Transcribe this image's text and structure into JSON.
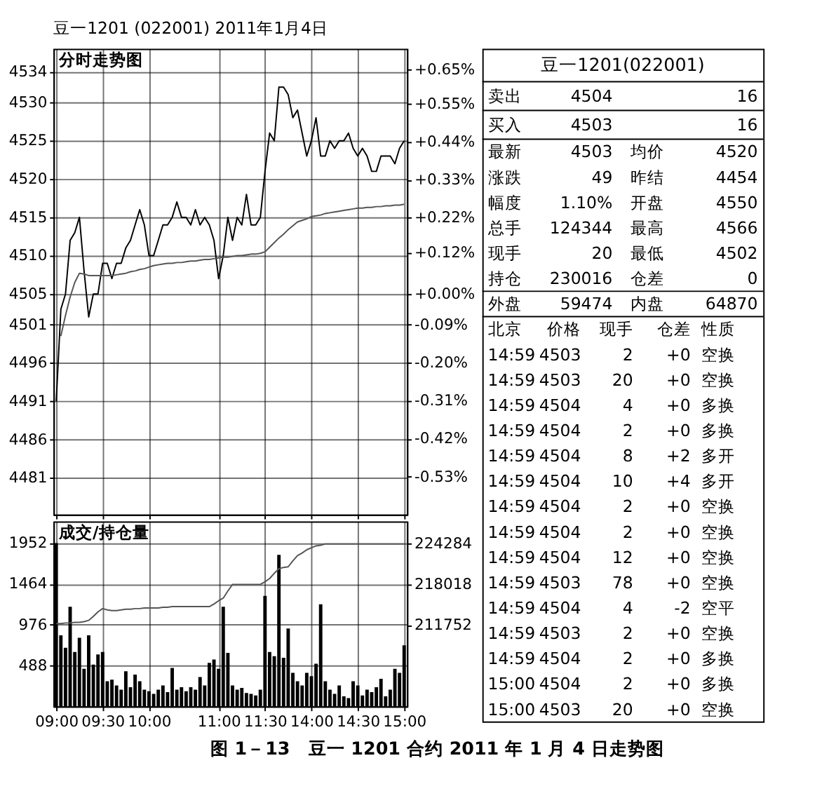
{
  "chart_data": [
    {
      "type": "line",
      "title": "分时走势图",
      "annotations": [
        "豆一1201 (022001) 2011年1月4日",
        "图 1－13　豆一 1201 合约 2011 年 1 月 4 日走势图"
      ],
      "categories": [
        null,
        null,
        null,
        null,
        null,
        null,
        null,
        null,
        null,
        null,
        null,
        null,
        null,
        null,
        null,
        null,
        null,
        null,
        null,
        null,
        null,
        null,
        null,
        null,
        null,
        null,
        null,
        null,
        null,
        null,
        null,
        null,
        null,
        null,
        null,
        null,
        null,
        null,
        null,
        null,
        null,
        null,
        null,
        null,
        null,
        null,
        null,
        null,
        null,
        null,
        null,
        null,
        null,
        null,
        null,
        null,
        null,
        null,
        null,
        null,
        null,
        null,
        null,
        null,
        null,
        null,
        null,
        null,
        null,
        null,
        null,
        null,
        null,
        null,
        null,
        null
      ],
      "ylim": [
        4476.2,
        4537.0
      ],
      "yticks": [
        4534,
        4530,
        4525,
        4520,
        4515,
        4510,
        4505,
        4501,
        4496,
        4491,
        4486,
        4481
      ],
      "y2lim": [
        -0.64,
        0.71
      ],
      "y2ticks": [
        {
          "value": 0.65,
          "label": "+0.65%"
        },
        {
          "value": 0.55,
          "label": "+0.55%"
        },
        {
          "value": 0.44,
          "label": "+0.44%"
        },
        {
          "value": 0.33,
          "label": "+0.33%"
        },
        {
          "value": 0.22,
          "label": "+0.22%"
        },
        {
          "value": 0.12,
          "label": "+0.12%"
        },
        {
          "value": 0,
          "label": "+0.00%"
        },
        {
          "value": -0.09,
          "label": "-0.09%"
        },
        {
          "value": -0.2,
          "label": "-0.20%"
        },
        {
          "value": -0.31,
          "label": "-0.31%"
        },
        {
          "value": -0.42,
          "label": "-0.42%"
        },
        {
          "value": -0.53,
          "label": "-0.53%"
        }
      ],
      "grid": true,
      "tick_labels": "y",
      "series": [
        {
          "type": "line",
          "color": "#000000",
          "values": [
            4491,
            4503,
            4505,
            4512,
            4513,
            4515,
            4508,
            4502,
            4505,
            4505,
            4509,
            4509,
            4507,
            4509,
            4509,
            4511,
            4512,
            4514,
            4516,
            4514,
            4510,
            4510,
            4512,
            4514,
            4514,
            4515,
            4517,
            4515,
            4515,
            4514,
            4516,
            4514,
            4515,
            4514,
            4512,
            4507,
            4510,
            4515,
            4512,
            4515,
            4514,
            4518,
            4514,
            4514,
            4515,
            4521,
            4526,
            4525,
            4532,
            4532,
            4531,
            4528,
            4529,
            4526,
            4523,
            4525,
            4528,
            4523,
            4523,
            4525,
            4524,
            4525,
            4525,
            4526,
            4524,
            4523,
            4524,
            4523,
            4521,
            4521,
            4523,
            4523,
            4523,
            4522,
            4524,
            4525
          ]
        },
        {
          "type": "line",
          "color": "#555555",
          "values": [
            null,
            4499.5,
            4502.2,
            4504.6,
            4506.5,
            4507.7,
            4507.6,
            4507.4,
            4507.4,
            4507.4,
            4507.4,
            4507.4,
            4507.4,
            4507.5,
            4507.6,
            4507.7,
            4507.9,
            4508.0,
            4508.2,
            4508.3,
            4508.5,
            4508.7,
            4508.8,
            4508.9,
            4509.0,
            4509.0,
            4509.1,
            4509.1,
            4509.2,
            4509.3,
            4509.3,
            4509.4,
            4509.5,
            4509.5,
            4509.6,
            4509.7,
            4509.8,
            4509.8,
            4509.9,
            4510.0,
            4510.0,
            4510.1,
            4510.2,
            4510.2,
            4510.3,
            4510.5,
            4511.1,
            4511.7,
            4512.3,
            4512.8,
            4513.4,
            4513.9,
            4514.4,
            4514.6,
            4514.8,
            4515.1,
            4515.2,
            4515.3,
            4515.5,
            4515.6,
            4515.7,
            4515.8,
            4515.9,
            4516.0,
            4516.1,
            4516.2,
            4516.2,
            4516.3,
            4516.3,
            4516.4,
            4516.4,
            4516.5,
            4516.5,
            4516.6,
            4516.6,
            4516.7
          ]
        }
      ]
    },
    {
      "type": "bar",
      "title": "成交/持仓量",
      "categories": [
        "09:00",
        null,
        null,
        null,
        null,
        null,
        null,
        null,
        null,
        null,
        "09:30",
        null,
        null,
        null,
        null,
        null,
        null,
        null,
        null,
        null,
        "10:00",
        null,
        null,
        null,
        null,
        null,
        null,
        null,
        null,
        null,
        null,
        null,
        null,
        null,
        null,
        "11:00",
        null,
        null,
        null,
        null,
        null,
        null,
        null,
        null,
        null,
        "11:30",
        null,
        null,
        null,
        null,
        null,
        null,
        null,
        null,
        null,
        "14:00",
        null,
        null,
        null,
        null,
        null,
        null,
        null,
        null,
        null,
        "14:30",
        null,
        null,
        null,
        null,
        null,
        null,
        null,
        null,
        null,
        "15:00"
      ],
      "ylim": [
        0,
        2210
      ],
      "yticks": [
        488,
        976,
        1464,
        1952
      ],
      "y2lim": [
        199330,
        227640
      ],
      "y2ticks": [
        211752,
        218018,
        224284
      ],
      "grid": true,
      "series": [
        {
          "type": "bar",
          "color": "#000000",
          "values": [
            1950,
            850,
            700,
            1190,
            650,
            820,
            450,
            850,
            500,
            620,
            650,
            300,
            320,
            250,
            200,
            420,
            230,
            380,
            300,
            200,
            180,
            150,
            200,
            250,
            170,
            460,
            200,
            230,
            180,
            230,
            200,
            350,
            250,
            520,
            560,
            450,
            1190,
            640,
            250,
            200,
            220,
            160,
            150,
            130,
            200,
            1320,
            650,
            600,
            1810,
            580,
            930,
            400,
            300,
            250,
            400,
            360,
            510,
            1220,
            300,
            200,
            150,
            250,
            120,
            100,
            300,
            250,
            130,
            200,
            170,
            230,
            330,
            120,
            200,
            450,
            400,
            730
          ]
        },
        {
          "type": "line",
          "axis": "y2",
          "color": "#555555",
          "values": [
            212000,
            212000,
            212100,
            212100,
            212200,
            212200,
            212300,
            212500,
            213100,
            213800,
            214300,
            214100,
            214000,
            214000,
            214100,
            214200,
            214200,
            214300,
            214300,
            214400,
            214400,
            214400,
            214400,
            214500,
            214500,
            214600,
            214600,
            214600,
            214600,
            214600,
            214600,
            214600,
            214600,
            214600,
            215000,
            215500,
            215900,
            217000,
            218000,
            218000,
            218000,
            218000,
            218000,
            218000,
            218000,
            218400,
            218900,
            219700,
            220400,
            220600,
            220700,
            221600,
            222400,
            222800,
            223300,
            223600,
            223900,
            224000,
            224200,
            224200,
            224200,
            224200,
            224200,
            224200,
            224200,
            224200,
            224200,
            224200,
            224200,
            224200,
            224200,
            224200,
            224200,
            224200,
            224200,
            224200
          ]
        }
      ]
    },
    {
      "type": "other",
      "title": "豆一1201(022001)",
      "annotations": [
        "卖出",
        "4504",
        "16",
        "买入",
        "4503",
        "16",
        "最新",
        "4503",
        "均价",
        "4520",
        "涨跌",
        "49",
        "昨结",
        "4454",
        "幅度",
        "1.10%",
        "开盘",
        "4550",
        "总手",
        "124344",
        "最高",
        "4566",
        "现手",
        "20",
        "最低",
        "4502",
        "持仓",
        "230016",
        "仓差",
        "0",
        "外盘",
        "59474",
        "内盘",
        "64870",
        "北京",
        "价格",
        "现手",
        "仓差",
        "性质",
        "14:59",
        "4503",
        "2",
        "+0",
        "空换",
        "14:59",
        "4503",
        "20",
        "+0",
        "空换",
        "14:59",
        "4504",
        "4",
        "+0",
        "多换",
        "14:59",
        "4504",
        "2",
        "+0",
        "多换",
        "14:59",
        "4504",
        "8",
        "+2",
        "多开",
        "14:59",
        "4504",
        "10",
        "+4",
        "多开",
        "14:59",
        "4504",
        "2",
        "+0",
        "空换",
        "14:59",
        "4504",
        "2",
        "+0",
        "空换",
        "14:59",
        "4504",
        "12",
        "+0",
        "空换",
        "14:59",
        "4503",
        "78",
        "+0",
        "空换",
        "14:59",
        "4504",
        "4",
        "-2",
        "空平",
        "14:59",
        "4503",
        "2",
        "+0",
        "空换",
        "14:59",
        "4504",
        "2",
        "+0",
        "多换",
        "15:00",
        "4504",
        "2",
        "+0",
        "多换",
        "15:00",
        "4503",
        "20",
        "+0",
        "空换"
      ]
    }
  ]
}
